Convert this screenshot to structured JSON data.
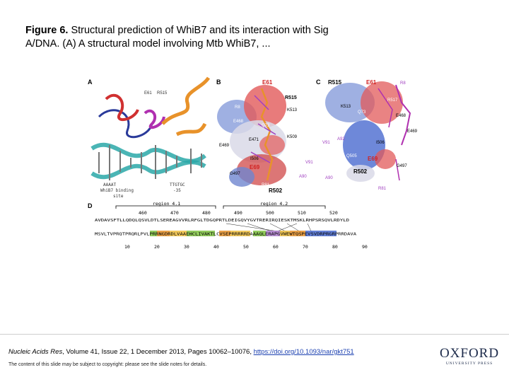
{
  "caption": {
    "figure_label": "Figure 6.",
    "text": " Structural prediction of WhiB7 and its interaction with Sig A/DNA. (A) A structural model involving Mtb WhiB7, ..."
  },
  "figure": {
    "panels": [
      "A",
      "B",
      "C",
      "D"
    ],
    "panel_a": {
      "labels": [
        "E61",
        "R515",
        "AAAAT",
        "WhiB7 binding",
        "site",
        "TTGTGC",
        "-35"
      ]
    },
    "panel_b": {
      "labels": [
        "E61",
        "R515",
        "K513",
        "E468",
        "Q73",
        "K509",
        "E469",
        "E471",
        "A92",
        "V91",
        "I506",
        "Q505",
        "A90",
        "G497",
        "E69",
        "R81",
        "R502",
        "R8"
      ]
    },
    "panel_c": {
      "labels": [
        "R515",
        "E61",
        "R8",
        "Q73",
        "K513",
        "R517",
        "E468",
        "E469",
        "A92",
        "V91",
        "I506",
        "Q505",
        "E69",
        "G497",
        "R502",
        "A90",
        "R81"
      ]
    },
    "panel_d": {
      "region_top_1": "region 4.1",
      "region_top_2": "region 4.2",
      "top_ticks": [
        "460",
        "470",
        "480",
        "490",
        "500",
        "510",
        "520"
      ],
      "sequence_top": "AVDAVSFTLLQDQLQSVLDTLSEREAGVVRLRFGLTDGQPRTLDEIGQVYGVTRERIRQIESKTMSKLRHPSRSQVLRDYLD",
      "sequence_bottom": "MSVLTVPRQTPRQRLPVLPRRNGDRDLVAAEHCLIVAKTLCVSEPRRRRRDAAAQLERAPGVWEWTQSPEVSVDRPRGRPRRDAVA",
      "bottom_ticks": [
        "10",
        "20",
        "30",
        "40",
        "50",
        "60",
        "70",
        "80",
        "90"
      ]
    }
  },
  "footer": {
    "journal": "Nucleic Acids Res",
    "details": ", Volume 41, Issue 22, 1 December 2013, Pages 10062–10076, ",
    "doi": "https://doi.org/10.1093/nar/gkt751",
    "copyright": "The content of this slide may be subject to copyright: please see the slide notes for details."
  },
  "logo": {
    "word": "OXFORD",
    "sub": "UNIVERSITY PRESS"
  },
  "colors": {
    "negative": "#e03a3a",
    "positive": "#3a5fd0",
    "helix_orange": "#e8922a",
    "dna_teal": "#2aa8a8",
    "link": "#1a3fb0"
  }
}
